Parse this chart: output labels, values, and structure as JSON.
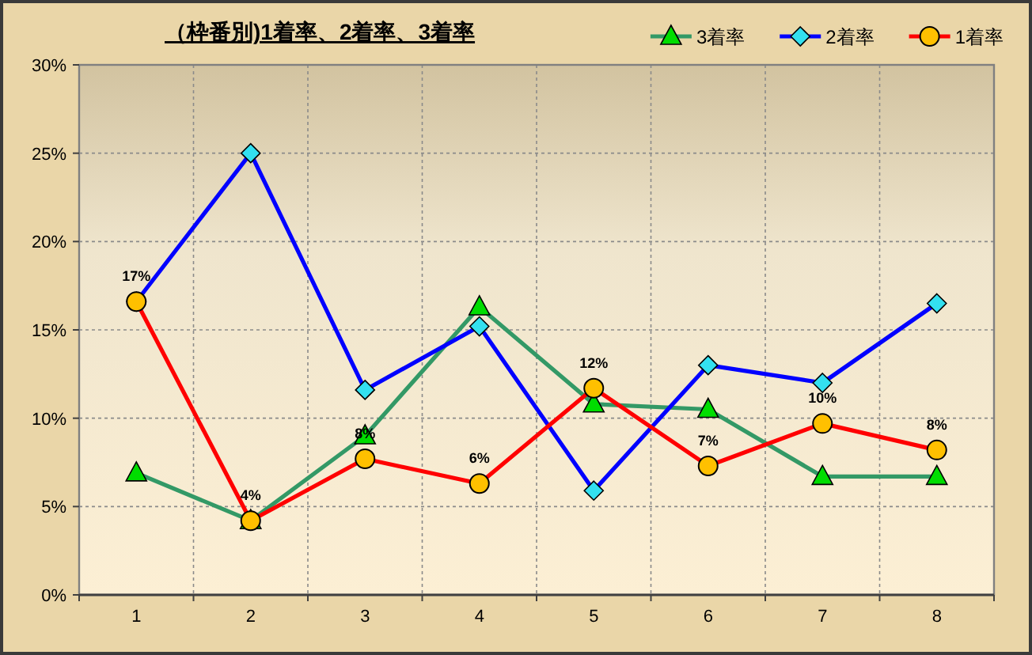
{
  "chart_data": {
    "type": "line",
    "title": "（枠番別)1着率、2着率、3着率",
    "categories": [
      "1",
      "2",
      "3",
      "4",
      "5",
      "6",
      "7",
      "8"
    ],
    "series": [
      {
        "name": "3着率",
        "color": "#339966",
        "marker": "triangle",
        "colors": [
          "#00dd00",
          "#00dd00",
          "#00dd00",
          "#00dd00",
          "#00dd00",
          "#00dd00",
          "#00dd00",
          "#00dd00"
        ],
        "values": [
          6.9,
          4.2,
          9.0,
          16.3,
          10.8,
          10.5,
          6.7,
          6.7
        ]
      },
      {
        "name": "2着率",
        "color": "#0000ff",
        "marker": "diamond",
        "colors": [
          "#33e0f0",
          "#33e0f0",
          "#33e0f0",
          "#33e0f0",
          "#33e0f0",
          "#33e0f0",
          "#33e0f0",
          "#33e0f0"
        ],
        "values": [
          16.6,
          25.0,
          11.6,
          15.2,
          5.9,
          13.0,
          12.0,
          16.5
        ]
      },
      {
        "name": "1着率",
        "color": "#ff0000",
        "marker": "circle",
        "colors": [
          "#ffc000",
          "#ffc000",
          "#ffc000",
          "#ffc000",
          "#ffc000",
          "#ffc000",
          "#ffc000",
          "#ffc000"
        ],
        "values": [
          16.6,
          4.2,
          7.7,
          6.3,
          11.7,
          7.3,
          9.7,
          8.2
        ],
        "value_labels": [
          "17%",
          "4%",
          "8%",
          "6%",
          "12%",
          "7%",
          "10%",
          "8%"
        ]
      }
    ],
    "ylim": [
      0,
      30
    ],
    "yticks": [
      {
        "value": 0,
        "label": "0%"
      },
      {
        "value": 5,
        "label": "5%"
      },
      {
        "value": 10,
        "label": "10%"
      },
      {
        "value": 15,
        "label": "15%"
      },
      {
        "value": 20,
        "label": "20%"
      },
      {
        "value": 25,
        "label": "25%"
      },
      {
        "value": 30,
        "label": "30%"
      }
    ],
    "grid": true,
    "legend": "top right",
    "line_style": "solid"
  }
}
